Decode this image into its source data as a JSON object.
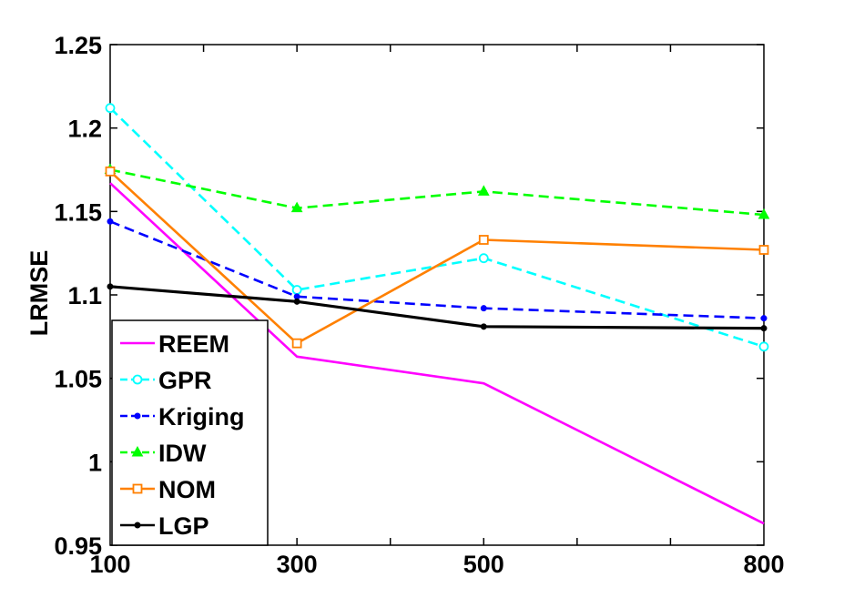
{
  "chart_data": {
    "type": "line",
    "title": "",
    "xlabel": "",
    "ylabel": "LRMSE",
    "x": [
      100,
      300,
      500,
      800
    ],
    "x_tick_labels": [
      "100",
      "300",
      "500",
      "800"
    ],
    "xlim": [
      100,
      800
    ],
    "ylim": [
      0.95,
      1.25
    ],
    "y_ticks": [
      0.95,
      1,
      1.05,
      1.1,
      1.15,
      1.2,
      1.25
    ],
    "y_tick_labels": [
      "0.95",
      "1",
      "1.05",
      "1.1",
      "1.15",
      "1.2",
      "1.25"
    ],
    "grid": false,
    "legend_position": "bottom-left",
    "series": [
      {
        "name": "REEM",
        "color": "#ff00ff",
        "line": "solid",
        "marker": "none",
        "values": [
          1.167,
          1.063,
          1.047,
          0.963
        ]
      },
      {
        "name": "GPR",
        "color": "#00ffff",
        "line": "dashed",
        "marker": "circle",
        "values": [
          1.212,
          1.103,
          1.122,
          1.069
        ]
      },
      {
        "name": "Kriging",
        "color": "#0000ff",
        "line": "dashed",
        "marker": "point",
        "values": [
          1.144,
          1.099,
          1.092,
          1.086
        ]
      },
      {
        "name": "IDW",
        "color": "#00ff00",
        "line": "dashed",
        "marker": "triangle",
        "values": [
          1.175,
          1.152,
          1.162,
          1.148
        ]
      },
      {
        "name": "NOM",
        "color": "#ff8000",
        "line": "solid",
        "marker": "square",
        "values": [
          1.174,
          1.071,
          1.133,
          1.127
        ]
      },
      {
        "name": "LGP",
        "color": "#000000",
        "line": "solid",
        "marker": "point",
        "values": [
          1.105,
          1.096,
          1.081,
          1.08
        ]
      }
    ]
  }
}
